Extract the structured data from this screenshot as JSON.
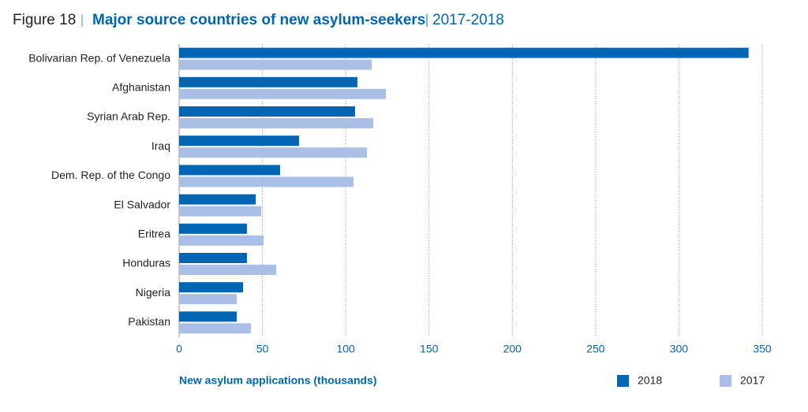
{
  "chart_data": {
    "type": "hbar",
    "figure_label": "Figure 18",
    "title": "Major source countries of new asylum-seekers",
    "subtitle": "2017-2018",
    "xlabel": "New asylum applications (thousands)",
    "categories": [
      "Bolivarian Rep. of Venezuela",
      "Afghanistan",
      "Syrian Arab Rep.",
      "Iraq",
      "Dem. Rep. of the Congo",
      "El Salvador",
      "Eritrea",
      "Honduras",
      "Nigeria",
      "Pakistan"
    ],
    "series": [
      {
        "name": "2018",
        "color": "#0066b3",
        "values": [
          341.8,
          107,
          105.6,
          72,
          60.6,
          46,
          40.7,
          40.7,
          38.4,
          34.6
        ]
      },
      {
        "name": "2017",
        "color": "#a9bfe6",
        "values": [
          115.6,
          124.1,
          116.5,
          112.7,
          104.7,
          49.3,
          50.7,
          58.3,
          34.6,
          43.1
        ]
      }
    ],
    "xlim": [
      0,
      350
    ],
    "xticks": [
      0,
      50,
      100,
      150,
      200,
      250,
      300,
      350
    ],
    "grid": true
  }
}
